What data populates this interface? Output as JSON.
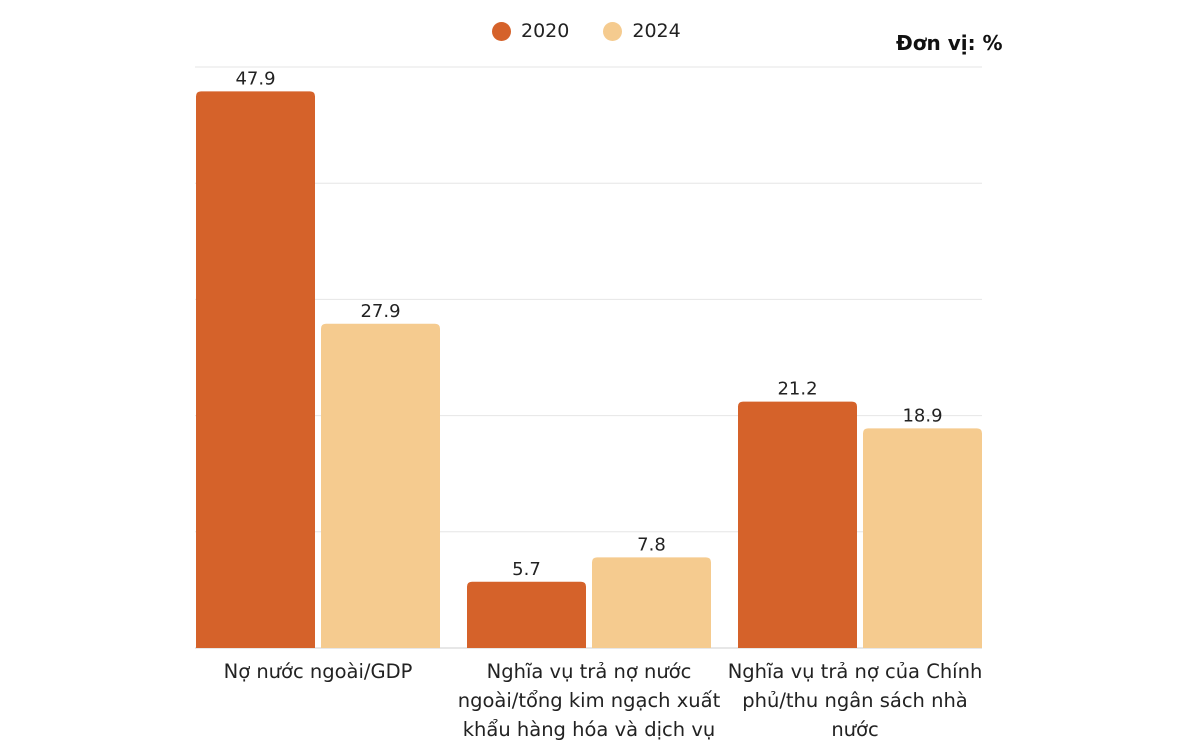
{
  "chart_data": {
    "type": "bar",
    "title": "",
    "unit_label": "Đơn vị: %",
    "xlabel": "",
    "ylabel": "",
    "ylim": [
      0,
      50
    ],
    "grid": true,
    "grid_step": 10,
    "legend_placement": "top",
    "categories": [
      "Nợ nước ngoài/GDP",
      "Nghĩa vụ trả nợ nước ngoài/tổng kim ngạch xuất khẩu hàng hóa và dịch vụ",
      "Nghĩa vụ trả nợ của Chính phủ/thu ngân sách nhà nước"
    ],
    "series": [
      {
        "name": "2020",
        "color": "#D5622A",
        "values": [
          47.9,
          5.7,
          21.2
        ]
      },
      {
        "name": "2024",
        "color": "#F5CB8F",
        "values": [
          27.9,
          7.8,
          18.9
        ]
      }
    ]
  }
}
